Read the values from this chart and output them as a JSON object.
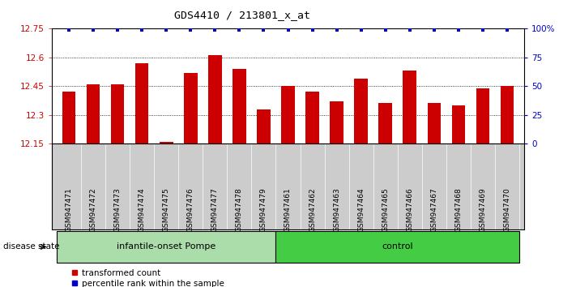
{
  "title": "GDS4410 / 213801_x_at",
  "samples": [
    "GSM947471",
    "GSM947472",
    "GSM947473",
    "GSM947474",
    "GSM947475",
    "GSM947476",
    "GSM947477",
    "GSM947478",
    "GSM947479",
    "GSM947461",
    "GSM947462",
    "GSM947463",
    "GSM947464",
    "GSM947465",
    "GSM947466",
    "GSM947467",
    "GSM947468",
    "GSM947469",
    "GSM947470"
  ],
  "values": [
    12.42,
    12.46,
    12.46,
    12.57,
    12.16,
    12.52,
    12.61,
    12.54,
    12.33,
    12.45,
    12.42,
    12.37,
    12.49,
    12.36,
    12.53,
    12.36,
    12.35,
    12.44,
    12.45
  ],
  "bar_color": "#cc0000",
  "dot_color": "#0000cc",
  "ylim_left": [
    12.15,
    12.75
  ],
  "ylim_right": [
    0,
    100
  ],
  "yticks_left": [
    12.15,
    12.3,
    12.45,
    12.6,
    12.75
  ],
  "ytick_left_labels": [
    "12.15",
    "12.3",
    "12.45",
    "12.6",
    "12.75"
  ],
  "yticks_right": [
    0,
    25,
    50,
    75,
    100
  ],
  "ytick_right_labels": [
    "0",
    "25",
    "50",
    "75",
    "100%"
  ],
  "grid_values": [
    12.3,
    12.45,
    12.6
  ],
  "groups": [
    {
      "label": "infantile-onset Pompe",
      "start": 0,
      "end": 9,
      "color": "#aaddaa"
    },
    {
      "label": "control",
      "start": 9,
      "end": 19,
      "color": "#44cc44"
    }
  ],
  "disease_state_label": "disease state",
  "legend_items": [
    {
      "label": "transformed count",
      "color": "#cc0000"
    },
    {
      "label": "percentile rank within the sample",
      "color": "#0000cc"
    }
  ],
  "xtick_bg": "#cccccc",
  "plot_bg": "#ffffff",
  "fig_bg": "#ffffff"
}
